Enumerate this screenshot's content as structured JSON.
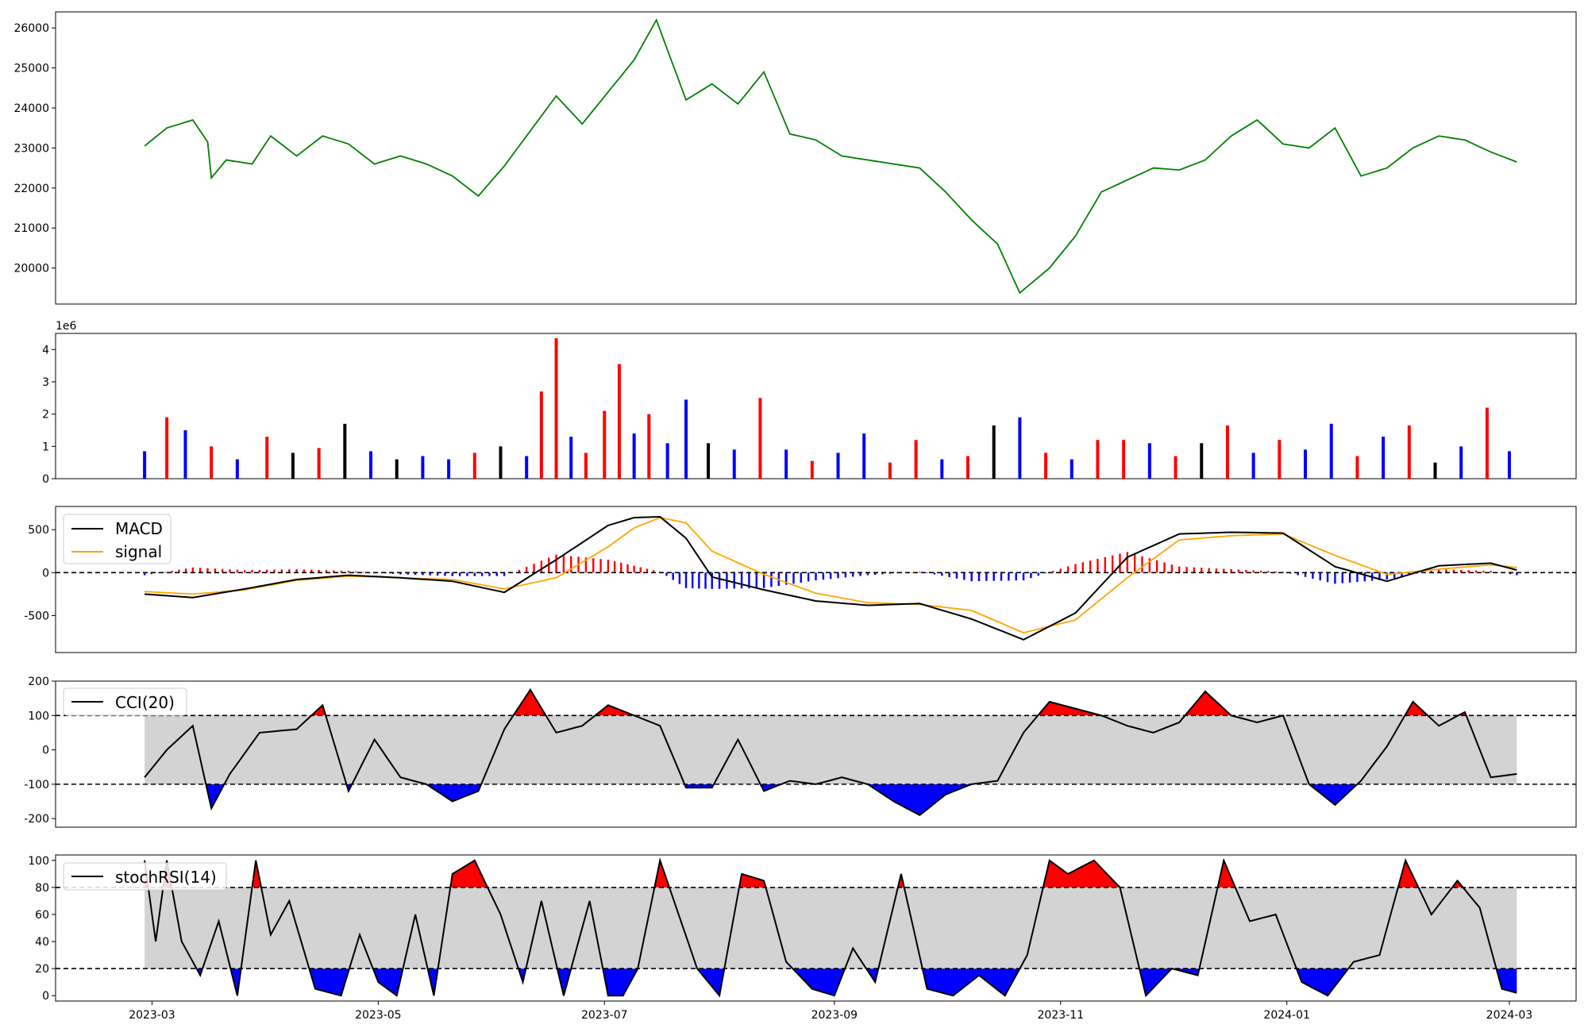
{
  "colors": {
    "price_line": "#008000",
    "up": "#ff0000",
    "down": "#0000ff",
    "neutral": "#000000",
    "signal": "#ffa500",
    "band": "#d3d3d3"
  },
  "chart_data": [
    {
      "type": "line",
      "panel": "price",
      "ylim": [
        19100,
        26400
      ],
      "yticks": [
        20000,
        21000,
        22000,
        23000,
        24000,
        25000,
        26000
      ],
      "series": [
        {
          "x": [
            "2023-02-27",
            "2023-03-05",
            "2023-03-12",
            "2023-03-16",
            "2023-03-17",
            "2023-03-21",
            "2023-03-28",
            "2023-04-02",
            "2023-04-09",
            "2023-04-16",
            "2023-04-23",
            "2023-04-30",
            "2023-05-07",
            "2023-05-14",
            "2023-05-21",
            "2023-05-28",
            "2023-06-04",
            "2023-06-10",
            "2023-06-18",
            "2023-06-25",
            "2023-07-02",
            "2023-07-09",
            "2023-07-15",
            "2023-07-23",
            "2023-07-30",
            "2023-08-06",
            "2023-08-13",
            "2023-08-20",
            "2023-08-27",
            "2023-09-03",
            "2023-09-10",
            "2023-09-17",
            "2023-09-24",
            "2023-10-01",
            "2023-10-08",
            "2023-10-15",
            "2023-10-21",
            "2023-10-29",
            "2023-11-05",
            "2023-11-12",
            "2023-11-19",
            "2023-11-26",
            "2023-12-03",
            "2023-12-10",
            "2023-12-17",
            "2023-12-24",
            "2023-12-31",
            "2024-01-07",
            "2024-01-14",
            "2024-01-21",
            "2024-01-28",
            "2024-02-04",
            "2024-02-11",
            "2024-02-18",
            "2024-02-25",
            "2024-03-03"
          ],
          "values": [
            23050,
            23500,
            23700,
            23150,
            22250,
            22700,
            22600,
            23300,
            22800,
            23300,
            23100,
            22600,
            22800,
            22600,
            22300,
            21800,
            22550,
            23300,
            24300,
            23600,
            24400,
            25200,
            26200,
            24200,
            24600,
            24100,
            24900,
            23350,
            23200,
            22800,
            22700,
            22600,
            22500,
            21900,
            21200,
            20600,
            19380,
            20000,
            20800,
            21900,
            22200,
            22500,
            22450,
            22700,
            23300,
            23700,
            23100,
            23000,
            23500,
            22300,
            22500,
            23000,
            23300,
            23200,
            22900,
            22650
          ]
        }
      ]
    },
    {
      "type": "bar",
      "panel": "volume",
      "ylim": [
        0,
        4500000
      ],
      "yticks": [
        0,
        1,
        2,
        3,
        4
      ],
      "scale_label": "1e6",
      "series": [
        {
          "x": [
            "2023-02-27",
            "2023-03-05",
            "2023-03-10",
            "2023-03-17",
            "2023-03-24",
            "2023-04-01",
            "2023-04-08",
            "2023-04-15",
            "2023-04-22",
            "2023-04-29",
            "2023-05-06",
            "2023-05-13",
            "2023-05-20",
            "2023-05-27",
            "2023-06-03",
            "2023-06-10",
            "2023-06-14",
            "2023-06-18",
            "2023-06-22",
            "2023-06-26",
            "2023-07-01",
            "2023-07-05",
            "2023-07-09",
            "2023-07-13",
            "2023-07-18",
            "2023-07-23",
            "2023-07-29",
            "2023-08-05",
            "2023-08-12",
            "2023-08-19",
            "2023-08-26",
            "2023-09-02",
            "2023-09-09",
            "2023-09-16",
            "2023-09-23",
            "2023-09-30",
            "2023-10-07",
            "2023-10-14",
            "2023-10-21",
            "2023-10-28",
            "2023-11-04",
            "2023-11-11",
            "2023-11-18",
            "2023-11-25",
            "2023-12-02",
            "2023-12-09",
            "2023-12-16",
            "2023-12-23",
            "2023-12-30",
            "2024-01-06",
            "2024-01-13",
            "2024-01-20",
            "2024-01-27",
            "2024-02-03",
            "2024-02-10",
            "2024-02-17",
            "2024-02-24",
            "2024-03-01"
          ],
          "values": [
            850000,
            1900000,
            1500000,
            1000000,
            600000,
            1300000,
            800000,
            950000,
            1700000,
            850000,
            600000,
            700000,
            600000,
            800000,
            1000000,
            700000,
            2700000,
            4350000,
            1300000,
            800000,
            2100000,
            3550000,
            1400000,
            2000000,
            1100000,
            2450000,
            1100000,
            900000,
            2500000,
            900000,
            550000,
            800000,
            1400000,
            500000,
            1200000,
            600000,
            700000,
            1650000,
            1900000,
            800000,
            600000,
            1200000,
            1200000,
            1100000,
            700000,
            1100000,
            1650000,
            800000,
            1200000,
            900000,
            1700000,
            700000,
            1300000,
            1650000,
            500000,
            1000000,
            2200000,
            850000
          ],
          "direction": [
            "down",
            "up",
            "down",
            "up",
            "down",
            "up",
            "neutral",
            "up",
            "neutral",
            "down",
            "neutral",
            "down",
            "down",
            "up",
            "neutral",
            "down",
            "up",
            "up",
            "down",
            "up",
            "up",
            "up",
            "down",
            "up",
            "down",
            "down",
            "neutral",
            "down",
            "up",
            "down",
            "up",
            "down",
            "down",
            "up",
            "up",
            "down",
            "up",
            "neutral",
            "down",
            "up",
            "down",
            "up",
            "up",
            "down",
            "up",
            "neutral",
            "up",
            "down",
            "up",
            "down",
            "down",
            "up",
            "down",
            "up",
            "neutral",
            "down",
            "up",
            "down"
          ]
        }
      ]
    },
    {
      "type": "line",
      "panel": "macd",
      "ylim": [
        -930,
        770
      ],
      "yticks": [
        -500,
        0,
        500
      ],
      "reference_lines": [
        0
      ],
      "legend": [
        "MACD",
        "signal"
      ],
      "x": [
        "2023-02-27",
        "2023-03-12",
        "2023-03-26",
        "2023-04-09",
        "2023-04-23",
        "2023-05-07",
        "2023-05-21",
        "2023-06-04",
        "2023-06-18",
        "2023-07-02",
        "2023-07-09",
        "2023-07-16",
        "2023-07-23",
        "2023-07-30",
        "2023-08-13",
        "2023-08-27",
        "2023-09-10",
        "2023-09-24",
        "2023-10-08",
        "2023-10-22",
        "2023-11-05",
        "2023-11-19",
        "2023-12-03",
        "2023-12-17",
        "2023-12-31",
        "2024-01-14",
        "2024-01-28",
        "2024-02-11",
        "2024-02-25",
        "2024-03-03"
      ],
      "series": [
        {
          "name": "MACD",
          "values": [
            -250,
            -290,
            -190,
            -80,
            -30,
            -60,
            -100,
            -230,
            150,
            550,
            640,
            650,
            400,
            -50,
            -200,
            -330,
            -380,
            -360,
            -540,
            -780,
            -470,
            180,
            450,
            470,
            460,
            70,
            -100,
            80,
            110,
            30
          ]
        },
        {
          "name": "signal",
          "values": [
            -220,
            -250,
            -200,
            -90,
            -40,
            -60,
            -80,
            -190,
            -60,
            300,
            520,
            640,
            580,
            250,
            -20,
            -240,
            -350,
            -370,
            -440,
            -700,
            -550,
            -60,
            380,
            430,
            450,
            200,
            -20,
            40,
            90,
            60
          ]
        },
        {
          "name": "histogram",
          "values": [
            -30,
            60,
            30,
            40,
            20,
            -20,
            -40,
            -40,
            210,
            150,
            80,
            10,
            -180,
            -190,
            -180,
            -90,
            -30,
            10,
            -100,
            -90,
            100,
            240,
            70,
            40,
            10,
            -130,
            -80,
            40,
            20,
            -30
          ]
        }
      ]
    },
    {
      "type": "line",
      "panel": "cci",
      "ylim": [
        -225,
        200
      ],
      "yticks": [
        -200,
        -100,
        0,
        100,
        200
      ],
      "reference_lines": [
        -100,
        100
      ],
      "legend": [
        "CCI(20)"
      ],
      "x": [
        "2023-02-27",
        "2023-03-05",
        "2023-03-12",
        "2023-03-17",
        "2023-03-22",
        "2023-03-30",
        "2023-04-09",
        "2023-04-16",
        "2023-04-23",
        "2023-04-30",
        "2023-05-07",
        "2023-05-14",
        "2023-05-21",
        "2023-05-28",
        "2023-06-04",
        "2023-06-11",
        "2023-06-18",
        "2023-06-25",
        "2023-07-02",
        "2023-07-09",
        "2023-07-16",
        "2023-07-23",
        "2023-07-30",
        "2023-08-06",
        "2023-08-13",
        "2023-08-20",
        "2023-08-27",
        "2023-09-03",
        "2023-09-10",
        "2023-09-17",
        "2023-09-24",
        "2023-10-01",
        "2023-10-08",
        "2023-10-15",
        "2023-10-22",
        "2023-10-29",
        "2023-11-05",
        "2023-11-12",
        "2023-11-19",
        "2023-11-26",
        "2023-12-03",
        "2023-12-10",
        "2023-12-17",
        "2023-12-24",
        "2023-12-31",
        "2024-01-07",
        "2024-01-14",
        "2024-01-21",
        "2024-01-28",
        "2024-02-04",
        "2024-02-11",
        "2024-02-18",
        "2024-02-25",
        "2024-03-03"
      ],
      "series": [
        {
          "name": "CCI(20)",
          "values": [
            -80,
            0,
            70,
            -170,
            -70,
            50,
            60,
            130,
            -120,
            30,
            -80,
            -100,
            -150,
            -120,
            60,
            175,
            50,
            70,
            130,
            100,
            70,
            -110,
            -110,
            30,
            -120,
            -90,
            -100,
            -80,
            -100,
            -150,
            -190,
            -130,
            -100,
            -90,
            50,
            140,
            120,
            100,
            70,
            50,
            80,
            170,
            100,
            80,
            100,
            -100,
            -160,
            -90,
            10,
            140,
            70,
            110,
            -80,
            -70
          ]
        }
      ]
    },
    {
      "type": "line",
      "panel": "stochrsi",
      "ylim": [
        -4,
        104
      ],
      "yticks": [
        0,
        20,
        40,
        60,
        80,
        100
      ],
      "reference_lines": [
        20,
        80
      ],
      "legend": [
        "stochRSI(14)"
      ],
      "x": [
        "2023-02-27",
        "2023-03-02",
        "2023-03-05",
        "2023-03-09",
        "2023-03-14",
        "2023-03-19",
        "2023-03-24",
        "2023-03-29",
        "2023-04-02",
        "2023-04-07",
        "2023-04-14",
        "2023-04-21",
        "2023-04-26",
        "2023-05-01",
        "2023-05-06",
        "2023-05-11",
        "2023-05-16",
        "2023-05-21",
        "2023-05-27",
        "2023-06-03",
        "2023-06-09",
        "2023-06-14",
        "2023-06-20",
        "2023-06-27",
        "2023-07-02",
        "2023-07-06",
        "2023-07-10",
        "2023-07-16",
        "2023-07-21",
        "2023-07-26",
        "2023-08-01",
        "2023-08-07",
        "2023-08-13",
        "2023-08-19",
        "2023-08-26",
        "2023-09-01",
        "2023-09-06",
        "2023-09-12",
        "2023-09-19",
        "2023-09-26",
        "2023-10-03",
        "2023-10-10",
        "2023-10-17",
        "2023-10-23",
        "2023-10-29",
        "2023-11-03",
        "2023-11-10",
        "2023-11-17",
        "2023-11-24",
        "2023-12-01",
        "2023-12-08",
        "2023-12-15",
        "2023-12-22",
        "2023-12-29",
        "2024-01-05",
        "2024-01-12",
        "2024-01-19",
        "2024-01-26",
        "2024-02-02",
        "2024-02-09",
        "2024-02-16",
        "2024-02-22",
        "2024-02-28",
        "2024-03-03"
      ],
      "series": [
        {
          "name": "stochRSI(14)",
          "values": [
            100,
            40,
            100,
            40,
            15,
            55,
            0,
            100,
            45,
            70,
            5,
            0,
            45,
            10,
            0,
            60,
            0,
            90,
            100,
            60,
            10,
            70,
            0,
            70,
            0,
            0,
            20,
            100,
            60,
            20,
            0,
            90,
            85,
            25,
            5,
            0,
            35,
            10,
            90,
            5,
            0,
            15,
            0,
            30,
            100,
            90,
            100,
            80,
            0,
            20,
            15,
            100,
            55,
            60,
            10,
            0,
            25,
            30,
            100,
            60,
            85,
            65,
            5,
            2
          ]
        }
      ]
    }
  ],
  "x_axis": {
    "tick_dates": [
      "2023-03-01",
      "2023-05-01",
      "2023-07-01",
      "2023-09-01",
      "2023-11-01",
      "2024-01-01",
      "2024-03-01"
    ],
    "tick_labels": [
      "2023-03",
      "2023-05",
      "2023-07",
      "2023-09",
      "2023-11",
      "2024-01",
      "2024-03"
    ]
  }
}
